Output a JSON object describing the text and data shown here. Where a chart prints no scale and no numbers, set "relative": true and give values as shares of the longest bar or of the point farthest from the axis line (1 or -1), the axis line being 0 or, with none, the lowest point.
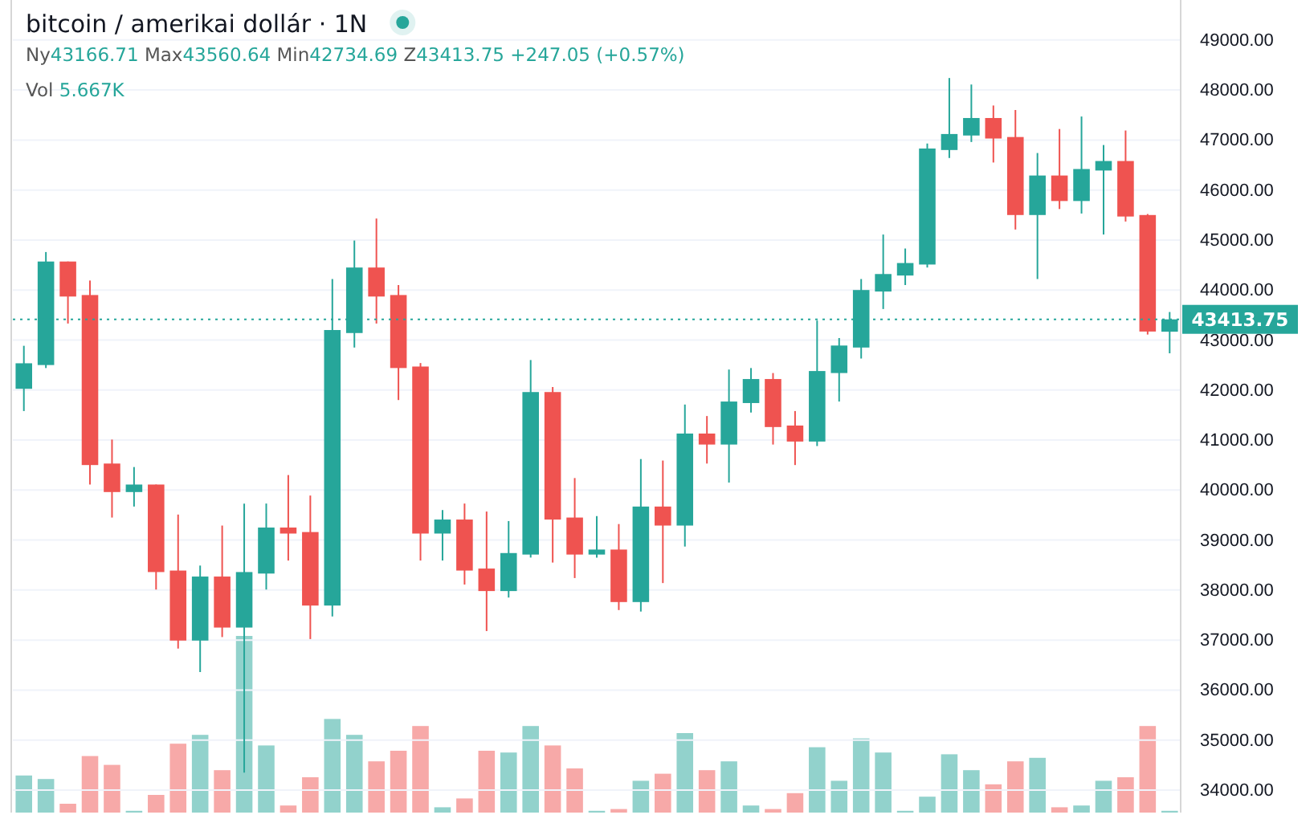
{
  "chart_data": [
    {
      "type": "candlestick",
      "title": "bitcoin / amerikai dollár · 1N",
      "subtitle": "Ny43166.71 Max43560.64 Min42734.69 Z43413.75 +247.05 (+0.57%)",
      "annotations": [
        "Vol 5.667K"
      ],
      "categories": [
        null,
        null,
        null,
        null,
        null,
        null,
        null,
        null,
        null,
        null,
        null,
        null,
        null,
        null,
        null,
        null,
        null,
        null,
        null,
        null,
        null,
        null,
        null,
        null,
        null,
        null,
        null,
        null,
        null,
        null,
        null,
        null,
        null,
        null,
        null,
        null,
        null,
        null,
        null,
        null,
        null,
        null,
        null,
        null,
        null,
        null,
        null,
        null,
        null,
        null,
        null,
        null,
        null
      ],
      "ohlc": [
        [
          42025,
          42885,
          41580,
          42535
        ],
        [
          42500,
          44760,
          42440,
          44570
        ],
        [
          44570,
          44570,
          43330,
          43870
        ],
        [
          43900,
          44190,
          40110,
          40500
        ],
        [
          40530,
          41010,
          39450,
          39960
        ],
        [
          39960,
          40460,
          39670,
          40110
        ],
        [
          40110,
          40110,
          38010,
          38360
        ],
        [
          38390,
          39510,
          36830,
          36990
        ],
        [
          36990,
          38490,
          36360,
          38270
        ],
        [
          38270,
          39290,
          37060,
          37250
        ],
        [
          37250,
          39730,
          34350,
          38360
        ],
        [
          38330,
          39730,
          38010,
          39250
        ],
        [
          39250,
          40300,
          38590,
          39130
        ],
        [
          39160,
          39890,
          37020,
          37690
        ],
        [
          37690,
          44220,
          37470,
          43200
        ],
        [
          43140,
          44990,
          42850,
          44450
        ],
        [
          44450,
          45430,
          43330,
          43870
        ],
        [
          43900,
          44100,
          41800,
          42440
        ],
        [
          42470,
          42540,
          38590,
          39130
        ],
        [
          39130,
          39600,
          38590,
          39410
        ],
        [
          39410,
          39730,
          38110,
          38390
        ],
        [
          38430,
          39570,
          37180,
          37980
        ],
        [
          37980,
          39380,
          37850,
          38740
        ],
        [
          38710,
          42600,
          38650,
          41960
        ],
        [
          41960,
          42060,
          38550,
          39410
        ],
        [
          39450,
          40240,
          38240,
          38710
        ],
        [
          38710,
          39480,
          38650,
          38810
        ],
        [
          38810,
          39320,
          37600,
          37760
        ],
        [
          37760,
          40620,
          37570,
          39670
        ],
        [
          39670,
          40590,
          38140,
          39290
        ],
        [
          39290,
          41710,
          38870,
          41130
        ],
        [
          41130,
          41480,
          40530,
          40910
        ],
        [
          40910,
          42410,
          40150,
          41770
        ],
        [
          41740,
          42440,
          41550,
          42220
        ],
        [
          42220,
          42340,
          40910,
          41260
        ],
        [
          41290,
          41580,
          40500,
          40970
        ],
        [
          40970,
          43390,
          40880,
          42380
        ],
        [
          42340,
          43040,
          41770,
          42890
        ],
        [
          42850,
          44220,
          42630,
          44000
        ],
        [
          43970,
          45110,
          43620,
          44320
        ],
        [
          44290,
          44830,
          44100,
          44540
        ],
        [
          44510,
          46930,
          44450,
          46830
        ],
        [
          46800,
          48240,
          46640,
          47120
        ],
        [
          47090,
          48110,
          46960,
          47440
        ],
        [
          47440,
          47690,
          46550,
          47030
        ],
        [
          47060,
          47600,
          45210,
          45500
        ],
        [
          45500,
          46740,
          44220,
          46290
        ],
        [
          46290,
          47220,
          45620,
          45780
        ],
        [
          45780,
          47470,
          45530,
          46420
        ],
        [
          46390,
          46900,
          45110,
          46580
        ],
        [
          46580,
          47190,
          45370,
          45470
        ],
        [
          45500,
          45520,
          43110,
          43170
        ],
        [
          43166.71,
          43560.64,
          42734.69,
          43413.75
        ]
      ],
      "colors": [
        "#26a69a",
        "#26a69a",
        "#ef5350",
        "#ef5350",
        "#ef5350",
        "#26a69a",
        "#ef5350",
        "#ef5350",
        "#26a69a",
        "#ef5350",
        "#26a69a",
        "#26a69a",
        "#ef5350",
        "#ef5350",
        "#26a69a",
        "#26a69a",
        "#ef5350",
        "#ef5350",
        "#ef5350",
        "#26a69a",
        "#ef5350",
        "#ef5350",
        "#26a69a",
        "#26a69a",
        "#ef5350",
        "#ef5350",
        "#26a69a",
        "#ef5350",
        "#26a69a",
        "#ef5350",
        "#26a69a",
        "#ef5350",
        "#26a69a",
        "#26a69a",
        "#ef5350",
        "#ef5350",
        "#26a69a",
        "#26a69a",
        "#26a69a",
        "#26a69a",
        "#26a69a",
        "#26a69a",
        "#26a69a",
        "#26a69a",
        "#ef5350",
        "#ef5350",
        "#26a69a",
        "#ef5350",
        "#26a69a",
        "#26a69a",
        "#ef5350",
        "#ef5350",
        "#26a69a"
      ],
      "ylim": [
        33550,
        49800
      ],
      "yticks": [
        {
          "value": 34000,
          "label": "34000.00"
        },
        {
          "value": 35000,
          "label": "35000.00"
        },
        {
          "value": 36000,
          "label": "36000.00"
        },
        {
          "value": 37000,
          "label": "37000.00"
        },
        {
          "value": 38000,
          "label": "38000.00"
        },
        {
          "value": 39000,
          "label": "39000.00"
        },
        {
          "value": 40000,
          "label": "40000.00"
        },
        {
          "value": 41000,
          "label": "41000.00"
        },
        {
          "value": 42000,
          "label": "42000.00"
        },
        {
          "value": 43000,
          "label": "43000.00"
        },
        {
          "value": 44000,
          "label": "44000.00"
        },
        {
          "value": 45000,
          "label": "45000.00"
        },
        {
          "value": 46000,
          "label": "46000.00"
        },
        {
          "value": 47000,
          "label": "47000.00"
        },
        {
          "value": 48000,
          "label": "48000.00"
        },
        {
          "value": 49000,
          "label": "49000.00"
        }
      ],
      "ref_lines": [
        {
          "axis": "y",
          "value": 43413.75,
          "label": "43413.75",
          "color": "#26a69a",
          "line_style": "dotted"
        }
      ],
      "grid": "y",
      "tick_labels": "y"
    },
    {
      "type": "bar",
      "relative": true,
      "tick_labels": false,
      "categories": [
        null,
        null,
        null,
        null,
        null,
        null,
        null,
        null,
        null,
        null,
        null,
        null,
        null,
        null,
        null,
        null,
        null,
        null,
        null,
        null,
        null,
        null,
        null,
        null,
        null,
        null,
        null,
        null,
        null,
        null,
        null,
        null,
        null,
        null,
        null,
        null,
        null,
        null,
        null,
        null,
        null,
        null,
        null,
        null,
        null,
        null,
        null,
        null,
        null,
        null,
        null,
        null,
        null
      ],
      "values": [
        0.21,
        0.19,
        0.05,
        0.32,
        0.27,
        0.01,
        0.1,
        0.39,
        0.44,
        0.24,
        1,
        0.38,
        0.04,
        0.2,
        0.53,
        0.44,
        0.29,
        0.35,
        0.49,
        0.03,
        0.08,
        0.35,
        0.34,
        0.49,
        0.38,
        0.25,
        0.01,
        0.02,
        0.18,
        0.22,
        0.45,
        0.24,
        0.29,
        0.04,
        0.02,
        0.11,
        0.37,
        0.18,
        0.42,
        0.34,
        0.01,
        0.09,
        0.33,
        0.24,
        0.16,
        0.29,
        0.31,
        0.03,
        0.04,
        0.18,
        0.2,
        0.49,
        0.01
      ],
      "colors": [
        "#92d2cc",
        "#92d2cc",
        "#f7a9a8",
        "#f7a9a8",
        "#f7a9a8",
        "#92d2cc",
        "#f7a9a8",
        "#f7a9a8",
        "#92d2cc",
        "#f7a9a8",
        "#92d2cc",
        "#92d2cc",
        "#f7a9a8",
        "#f7a9a8",
        "#92d2cc",
        "#92d2cc",
        "#f7a9a8",
        "#f7a9a8",
        "#f7a9a8",
        "#92d2cc",
        "#f7a9a8",
        "#f7a9a8",
        "#92d2cc",
        "#92d2cc",
        "#f7a9a8",
        "#f7a9a8",
        "#92d2cc",
        "#f7a9a8",
        "#92d2cc",
        "#f7a9a8",
        "#92d2cc",
        "#f7a9a8",
        "#92d2cc",
        "#92d2cc",
        "#f7a9a8",
        "#f7a9a8",
        "#92d2cc",
        "#92d2cc",
        "#92d2cc",
        "#92d2cc",
        "#92d2cc",
        "#92d2cc",
        "#92d2cc",
        "#92d2cc",
        "#f7a9a8",
        "#f7a9a8",
        "#92d2cc",
        "#f7a9a8",
        "#92d2cc",
        "#92d2cc",
        "#f7a9a8",
        "#f7a9a8",
        "#92d2cc"
      ]
    }
  ]
}
